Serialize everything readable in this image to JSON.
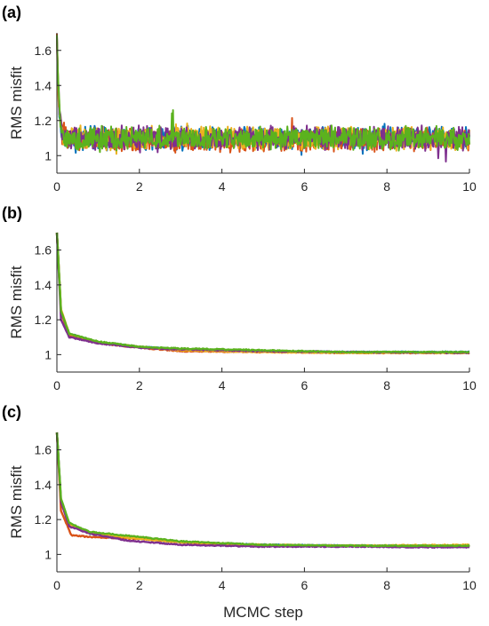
{
  "colors": {
    "blue": "#0072BD",
    "orange": "#D95319",
    "yellow": "#EDB120",
    "purple": "#7E2F8E",
    "green": "#5BB21E"
  },
  "chart_data": [
    {
      "panel": "(a)",
      "type": "line",
      "xlabel": "",
      "ylabel": "RMS misfit",
      "xlim": [
        0,
        10
      ],
      "ylim": [
        0.9,
        1.7
      ],
      "xticks": [
        "0",
        "2",
        "4",
        "6",
        "8",
        "10"
      ],
      "yticks": [
        "1",
        "1.2",
        "1.4",
        "1.6"
      ],
      "behavior": "noisy",
      "series": [
        {
          "color": "blue",
          "start": 1.7,
          "plateau": 1.1,
          "noise": 0.1
        },
        {
          "color": "orange",
          "start": 1.7,
          "plateau": 1.09,
          "noise": 0.1
        },
        {
          "color": "yellow",
          "start": 1.7,
          "plateau": 1.1,
          "noise": 0.1
        },
        {
          "color": "purple",
          "start": 1.7,
          "plateau": 1.1,
          "noise": 0.1
        },
        {
          "color": "green",
          "start": 1.7,
          "plateau": 1.1,
          "noise": 0.1
        }
      ]
    },
    {
      "panel": "(b)",
      "type": "line",
      "xlabel": "",
      "ylabel": "RMS misfit",
      "xlim": [
        0,
        10
      ],
      "ylim": [
        0.9,
        1.7
      ],
      "xticks": [
        "0",
        "2",
        "4",
        "6",
        "8",
        "10"
      ],
      "yticks": [
        "1",
        "1.2",
        "1.4",
        "1.6"
      ],
      "behavior": "smooth",
      "series": [
        {
          "color": "blue",
          "points": [
            [
              0,
              1.7
            ],
            [
              0.1,
              1.25
            ],
            [
              0.3,
              1.12
            ],
            [
              1,
              1.07
            ],
            [
              2,
              1.045
            ],
            [
              3,
              1.03
            ],
            [
              5,
              1.02
            ],
            [
              7,
              1.015
            ],
            [
              10,
              1.015
            ]
          ]
        },
        {
          "color": "orange",
          "points": [
            [
              0,
              1.7
            ],
            [
              0.1,
              1.24
            ],
            [
              0.3,
              1.11
            ],
            [
              1,
              1.065
            ],
            [
              2,
              1.04
            ],
            [
              3,
              1.02
            ],
            [
              5,
              1.015
            ],
            [
              7,
              1.01
            ],
            [
              10,
              1.01
            ]
          ]
        },
        {
          "color": "yellow",
          "points": [
            [
              0,
              1.7
            ],
            [
              0.1,
              1.26
            ],
            [
              0.3,
              1.12
            ],
            [
              1,
              1.07
            ],
            [
              2,
              1.045
            ],
            [
              3,
              1.025
            ],
            [
              5,
              1.015
            ],
            [
              7,
              1.01
            ],
            [
              10,
              1.01
            ]
          ]
        },
        {
          "color": "purple",
          "points": [
            [
              0,
              1.7
            ],
            [
              0.1,
              1.2
            ],
            [
              0.3,
              1.1
            ],
            [
              1,
              1.065
            ],
            [
              2,
              1.04
            ],
            [
              3,
              1.03
            ],
            [
              5,
              1.02
            ],
            [
              7,
              1.015
            ],
            [
              10,
              1.01
            ]
          ]
        },
        {
          "color": "green",
          "points": [
            [
              0,
              1.7
            ],
            [
              0.1,
              1.25
            ],
            [
              0.3,
              1.12
            ],
            [
              1,
              1.075
            ],
            [
              2,
              1.045
            ],
            [
              3,
              1.035
            ],
            [
              5,
              1.025
            ],
            [
              7,
              1.015
            ],
            [
              10,
              1.015
            ]
          ]
        }
      ]
    },
    {
      "panel": "(c)",
      "type": "line",
      "xlabel": "MCMC step",
      "ylabel": "RMS misfit",
      "xlim": [
        0,
        10
      ],
      "ylim": [
        0.9,
        1.7
      ],
      "xticks": [
        "0",
        "2",
        "4",
        "6",
        "8",
        "10"
      ],
      "yticks": [
        "1",
        "1.2",
        "1.4",
        "1.6"
      ],
      "behavior": "smooth",
      "series": [
        {
          "color": "blue",
          "points": [
            [
              0,
              1.7
            ],
            [
              0.1,
              1.3
            ],
            [
              0.3,
              1.18
            ],
            [
              0.8,
              1.12
            ],
            [
              2,
              1.09
            ],
            [
              3,
              1.07
            ],
            [
              5,
              1.055
            ],
            [
              7,
              1.05
            ],
            [
              10,
              1.05
            ]
          ]
        },
        {
          "color": "orange",
          "points": [
            [
              0,
              1.7
            ],
            [
              0.1,
              1.25
            ],
            [
              0.35,
              1.11
            ],
            [
              0.8,
              1.1
            ],
            [
              2,
              1.09
            ],
            [
              3,
              1.07
            ],
            [
              5,
              1.05
            ],
            [
              7,
              1.05
            ],
            [
              10,
              1.045
            ]
          ]
        },
        {
          "color": "yellow",
          "points": [
            [
              0,
              1.7
            ],
            [
              0.1,
              1.3
            ],
            [
              0.3,
              1.17
            ],
            [
              0.8,
              1.12
            ],
            [
              2,
              1.09
            ],
            [
              3,
              1.07
            ],
            [
              5,
              1.055
            ],
            [
              7,
              1.05
            ],
            [
              10,
              1.055
            ]
          ]
        },
        {
          "color": "purple",
          "points": [
            [
              0,
              1.7
            ],
            [
              0.1,
              1.3
            ],
            [
              0.3,
              1.16
            ],
            [
              0.8,
              1.12
            ],
            [
              1.7,
              1.08
            ],
            [
              3,
              1.055
            ],
            [
              5,
              1.045
            ],
            [
              7,
              1.045
            ],
            [
              10,
              1.04
            ]
          ]
        },
        {
          "color": "green",
          "points": [
            [
              0,
              1.7
            ],
            [
              0.1,
              1.32
            ],
            [
              0.3,
              1.18
            ],
            [
              0.8,
              1.13
            ],
            [
              2,
              1.1
            ],
            [
              3,
              1.075
            ],
            [
              5,
              1.055
            ],
            [
              7,
              1.05
            ],
            [
              10,
              1.05
            ]
          ]
        }
      ]
    }
  ]
}
